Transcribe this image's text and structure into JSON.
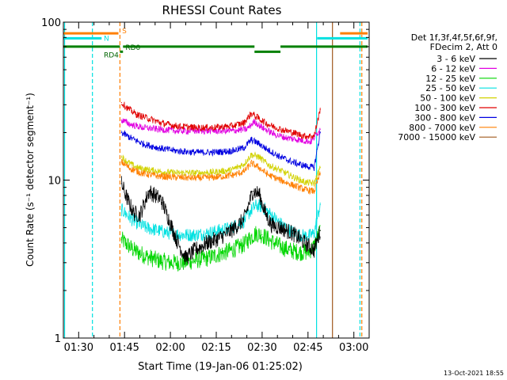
{
  "chart_data": {
    "type": "line",
    "title": "RHESSI Count Rates",
    "xlabel": "Start Time (19-Jan-06 01:25:02)",
    "ylabel": "Count Rate (s⁻¹ detector segment⁻¹)",
    "yscale": "log",
    "ylim": [
      1,
      100
    ],
    "xlim_minutes": [
      85.0,
      185.0
    ],
    "x_ticks": [
      {
        "label": "01:30",
        "min": 90
      },
      {
        "label": "01:45",
        "min": 105
      },
      {
        "label": "02:00",
        "min": 120
      },
      {
        "label": "02:15",
        "min": 135
      },
      {
        "label": "02:30",
        "min": 150
      },
      {
        "label": "02:45",
        "min": 165
      },
      {
        "label": "03:00",
        "min": 180
      }
    ],
    "y_ticks": [
      {
        "label": "1",
        "value": 1
      },
      {
        "label": "10",
        "value": 10
      },
      {
        "label": "100",
        "value": 100
      }
    ],
    "legend_header": [
      "Det 1f,3f,4f,5f,6f,9f,",
      "FDecim 2, Att 0"
    ],
    "legend_position": "right",
    "series": [
      {
        "name": "3 - 6 keV",
        "color": "#000000",
        "x": [
          104.0,
          106.0,
          108.0,
          110.0,
          113.0,
          115.0,
          117.0,
          119.0,
          122.0,
          125.0,
          128.0,
          132.0,
          136.0,
          140.0,
          144.0,
          147.0,
          149.0,
          151.0,
          153.0,
          156.0,
          160.0,
          164.0,
          167.0,
          169.0
        ],
        "y": [
          9.5,
          7.5,
          6.2,
          6.0,
          8.5,
          8.0,
          7.5,
          6.0,
          4.2,
          3.2,
          3.6,
          4.0,
          4.3,
          4.8,
          5.6,
          8.5,
          8.2,
          6.2,
          5.2,
          5.0,
          4.6,
          4.0,
          3.6,
          4.8
        ]
      },
      {
        "name": "6 - 12 keV",
        "color": "#e100e1",
        "x": [
          104.0,
          107.0,
          111.0,
          116.0,
          122.0,
          128.0,
          134.0,
          140.0,
          145.0,
          147.5,
          150.0,
          154.0,
          158.0,
          162.0,
          166.0,
          169.0
        ],
        "y": [
          24.0,
          22.5,
          21.5,
          21.0,
          20.5,
          20.5,
          20.5,
          20.5,
          21.0,
          23.5,
          21.5,
          19.5,
          18.5,
          18.0,
          17.5,
          21.0
        ]
      },
      {
        "name": "12 - 25 keV",
        "color": "#00d600",
        "x": [
          104.0,
          108.0,
          112.0,
          116.0,
          120.0,
          124.0,
          128.0,
          132.0,
          136.0,
          140.0,
          144.0,
          146.0,
          148.0,
          150.0,
          153.0,
          156.0,
          159.0,
          162.0,
          165.0,
          167.0,
          169.0
        ],
        "y": [
          4.2,
          3.6,
          3.3,
          3.1,
          3.0,
          3.0,
          3.1,
          3.2,
          3.4,
          3.6,
          3.9,
          4.3,
          4.6,
          4.5,
          4.1,
          3.8,
          3.6,
          3.5,
          3.5,
          3.8,
          4.8
        ]
      },
      {
        "name": "25 - 50 keV",
        "color": "#00e1e1",
        "x": [
          104.0,
          108.0,
          112.0,
          116.0,
          120.0,
          124.0,
          128.0,
          132.0,
          136.0,
          140.0,
          144.0,
          146.0,
          148.0,
          150.0,
          153.0,
          156.0,
          159.0,
          162.0,
          165.0,
          167.0,
          169.0
        ],
        "y": [
          6.5,
          5.5,
          5.0,
          4.8,
          4.6,
          4.5,
          4.5,
          4.6,
          4.8,
          5.0,
          5.5,
          6.3,
          6.9,
          6.8,
          6.0,
          5.3,
          4.8,
          4.5,
          4.4,
          4.6,
          7.0
        ]
      },
      {
        "name": "50 - 100 keV",
        "color": "#d2d200",
        "x": [
          104.0,
          106.0,
          109.0,
          113.0,
          117.0,
          122.0,
          128.0,
          134.0,
          140.0,
          144.0,
          146.5,
          149.0,
          152.0,
          156.0,
          160.0,
          164.0,
          167.0,
          169.0
        ],
        "y": [
          14.0,
          13.0,
          12.0,
          11.6,
          11.3,
          11.1,
          11.1,
          11.2,
          11.6,
          12.6,
          14.5,
          14.0,
          12.5,
          11.5,
          10.5,
          9.7,
          9.5,
          12.0
        ]
      },
      {
        "name": "100 - 300 keV",
        "color": "#e10000",
        "x": [
          104.0,
          106.0,
          109.0,
          113.0,
          117.0,
          122.0,
          128.0,
          134.0,
          140.0,
          144.0,
          146.5,
          149.0,
          152.0,
          156.0,
          160.0,
          164.0,
          167.0,
          169.0
        ],
        "y": [
          31.0,
          28.5,
          26.0,
          24.5,
          23.0,
          22.0,
          21.5,
          21.5,
          22.0,
          23.0,
          26.5,
          24.5,
          22.5,
          21.0,
          20.0,
          19.0,
          19.0,
          28.0
        ]
      },
      {
        "name": "300 - 800 keV",
        "color": "#0000e1",
        "x": [
          104.0,
          107.0,
          111.0,
          116.0,
          122.0,
          128.0,
          134.0,
          140.0,
          144.0,
          146.5,
          149.0,
          152.0,
          156.0,
          160.0,
          164.0,
          167.0,
          169.0
        ],
        "y": [
          20.0,
          18.5,
          17.0,
          16.0,
          15.3,
          15.0,
          15.0,
          15.3,
          16.0,
          18.0,
          17.0,
          15.5,
          14.0,
          13.0,
          12.3,
          12.0,
          20.0
        ]
      },
      {
        "name": "800 - 7000 keV",
        "color": "#ff7f00",
        "x": [
          104.0,
          107.0,
          111.0,
          116.0,
          122.0,
          128.0,
          134.0,
          140.0,
          144.0,
          146.5,
          149.0,
          152.0,
          156.0,
          160.0,
          164.0,
          167.0,
          169.0
        ],
        "y": [
          13.0,
          11.8,
          11.0,
          10.6,
          10.4,
          10.3,
          10.4,
          10.7,
          11.3,
          12.8,
          12.0,
          10.8,
          10.0,
          9.3,
          8.7,
          8.5,
          11.0
        ]
      },
      {
        "name": "7000 - 15000 keV",
        "color": "#a05a1e",
        "x": [],
        "y": []
      }
    ],
    "annotations": [
      {
        "text": "S",
        "color": "#ff7f00"
      },
      {
        "text": "N",
        "color": "#00e1e1"
      },
      {
        "text": "RD4",
        "color": "#006400"
      },
      {
        "text": "RD0",
        "color": "#006400"
      }
    ],
    "vertical_markers": [
      {
        "min": 85.4,
        "color": "#00e1e1",
        "dashed": false
      },
      {
        "min": 94.5,
        "color": "#00e1e1",
        "dashed": true
      },
      {
        "min": 103.5,
        "color": "#ff7f00",
        "dashed": true
      },
      {
        "min": 167.8,
        "color": "#00e1e1",
        "dashed": false
      },
      {
        "min": 173.0,
        "color": "#a05a1e",
        "dashed": false
      },
      {
        "min": 182.0,
        "color": "#00e1e1",
        "dashed": true
      },
      {
        "min": 182.6,
        "color": "#ff7f00",
        "dashed": true
      }
    ],
    "flag_bars": [
      {
        "name": "orange-top",
        "color": "#ff7f00",
        "segments": [
          [
            85.0,
            103.0
          ],
          [
            175.5,
            184.5
          ]
        ],
        "level": 85
      },
      {
        "name": "cyan",
        "color": "#00e1e1",
        "segments": [
          [
            85.0,
            97.5
          ],
          [
            168.0,
            184.5
          ]
        ],
        "level": 79
      },
      {
        "name": "green",
        "color": "#008000",
        "segments": [
          [
            85.0,
            103.5
          ],
          [
            104.5,
            147.5
          ],
          [
            156.0,
            184.5
          ]
        ],
        "level": 70
      },
      {
        "name": "green-step",
        "color": "#008000",
        "segments": [
          [
            103.5,
            104.5
          ],
          [
            147.5,
            156.0
          ]
        ],
        "level": 65
      }
    ]
  },
  "footer": {
    "date_stamp": "13-Oct-2021 18:55"
  }
}
